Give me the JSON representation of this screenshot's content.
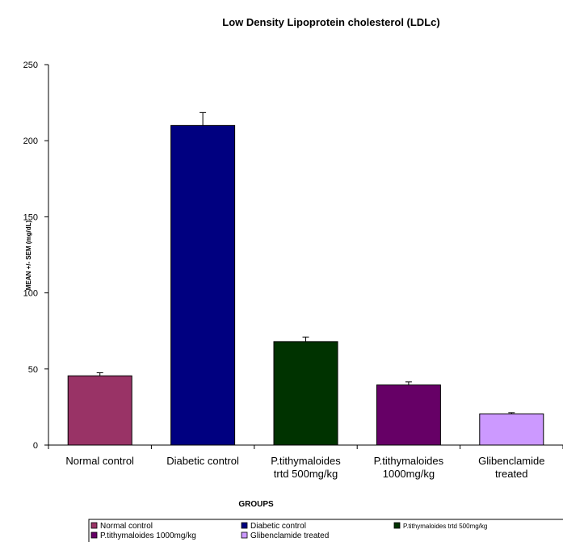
{
  "chart_data": {
    "type": "bar",
    "title": "Low Density Lipoprotein cholesterol (LDLc)",
    "xlabel": "GROUPS",
    "ylabel": "MEAN +/- SEM (mg/dL)",
    "ylim": [
      0,
      250
    ],
    "yticks": [
      0,
      50,
      100,
      150,
      200,
      250
    ],
    "categories": [
      [
        "Normal control"
      ],
      [
        "Diabetic control"
      ],
      [
        "P.tithymaloides",
        "trtd 500mg/kg"
      ],
      [
        "P.tithymaloides",
        "1000mg/kg"
      ],
      [
        "Glibenclamide",
        "treated"
      ]
    ],
    "values": [
      45.5,
      210,
      68,
      39.5,
      20.5
    ],
    "errors": [
      2,
      8.5,
      3,
      2,
      0.8
    ],
    "colors": [
      "#993366",
      "#000080",
      "#003300",
      "#660066",
      "#cc99ff"
    ],
    "legend": {
      "placement": "bottom",
      "entries": [
        "Normal control",
        "Diabetic control",
        "P.tithymaloides trtd 500mg/kg",
        "P.tithymaloides 1000mg/kg",
        "Glibenclamide treated"
      ]
    },
    "grid": false
  }
}
